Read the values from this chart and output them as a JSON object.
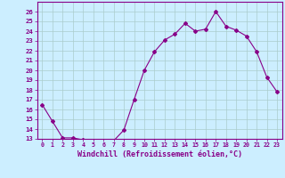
{
  "hours": [
    0,
    1,
    2,
    3,
    4,
    5,
    6,
    7,
    8,
    9,
    10,
    11,
    12,
    13,
    14,
    15,
    16,
    17,
    18,
    19,
    20,
    21,
    22,
    23
  ],
  "values": [
    16.5,
    14.8,
    13.1,
    13.1,
    12.9,
    12.8,
    12.8,
    12.8,
    13.9,
    17.0,
    20.0,
    21.9,
    23.1,
    23.7,
    24.8,
    24.0,
    24.2,
    26.0,
    24.5,
    24.1,
    23.5,
    21.9,
    19.3,
    17.8
  ],
  "line_color": "#880088",
  "marker": "D",
  "marker_size": 2.0,
  "bg_color": "#cceeff",
  "grid_color": "#aacccc",
  "xlabel": "Windchill (Refroidissement éolien,°C)",
  "xlim": [
    -0.5,
    23.5
  ],
  "ylim": [
    13,
    27
  ],
  "ytick_min": 13,
  "ytick_max": 26,
  "axis_color": "#880088",
  "tick_color": "#880088",
  "label_color": "#880088",
  "xtick_labels": [
    "0",
    "1",
    "2",
    "3",
    "4",
    "5",
    "6",
    "7",
    "8",
    "9",
    "10",
    "11",
    "12",
    "13",
    "14",
    "15",
    "16",
    "17",
    "18",
    "19",
    "20",
    "21",
    "22",
    "23"
  ]
}
